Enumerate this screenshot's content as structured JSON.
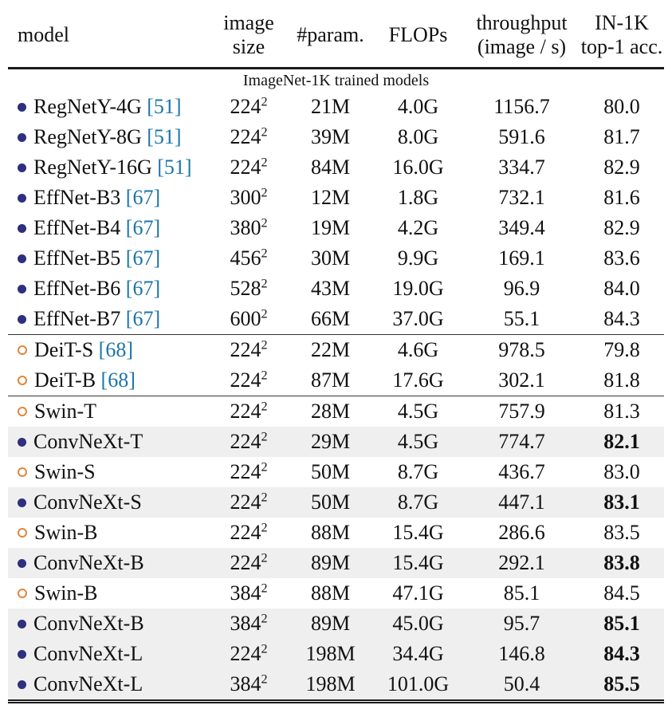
{
  "header": {
    "model": "model",
    "size_line1": "image",
    "size_line2": "size",
    "param": "#param.",
    "flops": "FLOPs",
    "tp_line1": "throughput",
    "tp_line2": "(image / s)",
    "acc_line1": "IN-1K",
    "acc_line2": "top-1 acc."
  },
  "section_label": "ImageNet-1K trained models",
  "colors": {
    "filled_marker": "#2f2f7f",
    "open_marker": "#e0873c",
    "citation": "#1b75a8",
    "highlight_row": "#efefef"
  },
  "rows": [
    {
      "marker": "filled",
      "model": "RegNetY-4G",
      "cite": "[51]",
      "size": "224",
      "exp": "2",
      "params": "21M",
      "flops": "4.0G",
      "throughput": "1156.7",
      "acc": "80.0",
      "bold_acc": false,
      "highlight": false,
      "group_start": false
    },
    {
      "marker": "filled",
      "model": "RegNetY-8G",
      "cite": "[51]",
      "size": "224",
      "exp": "2",
      "params": "39M",
      "flops": "8.0G",
      "throughput": "591.6",
      "acc": "81.7",
      "bold_acc": false,
      "highlight": false,
      "group_start": false
    },
    {
      "marker": "filled",
      "model": "RegNetY-16G",
      "cite": "[51]",
      "size": "224",
      "exp": "2",
      "params": "84M",
      "flops": "16.0G",
      "throughput": "334.7",
      "acc": "82.9",
      "bold_acc": false,
      "highlight": false,
      "group_start": false
    },
    {
      "marker": "filled",
      "model": "EffNet-B3",
      "cite": "[67]",
      "size": "300",
      "exp": "2",
      "params": "12M",
      "flops": "1.8G",
      "throughput": "732.1",
      "acc": "81.6",
      "bold_acc": false,
      "highlight": false,
      "group_start": false
    },
    {
      "marker": "filled",
      "model": "EffNet-B4",
      "cite": "[67]",
      "size": "380",
      "exp": "2",
      "params": "19M",
      "flops": "4.2G",
      "throughput": "349.4",
      "acc": "82.9",
      "bold_acc": false,
      "highlight": false,
      "group_start": false
    },
    {
      "marker": "filled",
      "model": "EffNet-B5",
      "cite": "[67]",
      "size": "456",
      "exp": "2",
      "params": "30M",
      "flops": "9.9G",
      "throughput": "169.1",
      "acc": "83.6",
      "bold_acc": false,
      "highlight": false,
      "group_start": false
    },
    {
      "marker": "filled",
      "model": "EffNet-B6",
      "cite": "[67]",
      "size": "528",
      "exp": "2",
      "params": "43M",
      "flops": "19.0G",
      "throughput": "96.9",
      "acc": "84.0",
      "bold_acc": false,
      "highlight": false,
      "group_start": false
    },
    {
      "marker": "filled",
      "model": "EffNet-B7",
      "cite": "[67]",
      "size": "600",
      "exp": "2",
      "params": "66M",
      "flops": "37.0G",
      "throughput": "55.1",
      "acc": "84.3",
      "bold_acc": false,
      "highlight": false,
      "group_start": false
    },
    {
      "marker": "open",
      "model": "DeiT-S",
      "cite": "[68]",
      "size": "224",
      "exp": "2",
      "params": "22M",
      "flops": "4.6G",
      "throughput": "978.5",
      "acc": "79.8",
      "bold_acc": false,
      "highlight": false,
      "group_start": true
    },
    {
      "marker": "open",
      "model": "DeiT-B",
      "cite": "[68]",
      "size": "224",
      "exp": "2",
      "params": "87M",
      "flops": "17.6G",
      "throughput": "302.1",
      "acc": "81.8",
      "bold_acc": false,
      "highlight": false,
      "group_start": false
    },
    {
      "marker": "open",
      "model": "Swin-T",
      "cite": "",
      "size": "224",
      "exp": "2",
      "params": "28M",
      "flops": "4.5G",
      "throughput": "757.9",
      "acc": "81.3",
      "bold_acc": false,
      "highlight": false,
      "group_start": true
    },
    {
      "marker": "filled",
      "model": "ConvNeXt-T",
      "cite": "",
      "size": "224",
      "exp": "2",
      "params": "29M",
      "flops": "4.5G",
      "throughput": "774.7",
      "acc": "82.1",
      "bold_acc": true,
      "highlight": true,
      "group_start": false
    },
    {
      "marker": "open",
      "model": "Swin-S",
      "cite": "",
      "size": "224",
      "exp": "2",
      "params": "50M",
      "flops": "8.7G",
      "throughput": "436.7",
      "acc": "83.0",
      "bold_acc": false,
      "highlight": false,
      "group_start": false
    },
    {
      "marker": "filled",
      "model": "ConvNeXt-S",
      "cite": "",
      "size": "224",
      "exp": "2",
      "params": "50M",
      "flops": "8.7G",
      "throughput": "447.1",
      "acc": "83.1",
      "bold_acc": true,
      "highlight": true,
      "group_start": false
    },
    {
      "marker": "open",
      "model": "Swin-B",
      "cite": "",
      "size": "224",
      "exp": "2",
      "params": "88M",
      "flops": "15.4G",
      "throughput": "286.6",
      "acc": "83.5",
      "bold_acc": false,
      "highlight": false,
      "group_start": false
    },
    {
      "marker": "filled",
      "model": "ConvNeXt-B",
      "cite": "",
      "size": "224",
      "exp": "2",
      "params": "89M",
      "flops": "15.4G",
      "throughput": "292.1",
      "acc": "83.8",
      "bold_acc": true,
      "highlight": true,
      "group_start": false
    },
    {
      "marker": "open",
      "model": "Swin-B",
      "cite": "",
      "size": "384",
      "exp": "2",
      "params": "88M",
      "flops": "47.1G",
      "throughput": "85.1",
      "acc": "84.5",
      "bold_acc": false,
      "highlight": false,
      "group_start": false
    },
    {
      "marker": "filled",
      "model": "ConvNeXt-B",
      "cite": "",
      "size": "384",
      "exp": "2",
      "params": "89M",
      "flops": "45.0G",
      "throughput": "95.7",
      "acc": "85.1",
      "bold_acc": true,
      "highlight": true,
      "group_start": false
    },
    {
      "marker": "filled",
      "model": "ConvNeXt-L",
      "cite": "",
      "size": "224",
      "exp": "2",
      "params": "198M",
      "flops": "34.4G",
      "throughput": "146.8",
      "acc": "84.3",
      "bold_acc": true,
      "highlight": true,
      "group_start": false
    },
    {
      "marker": "filled",
      "model": "ConvNeXt-L",
      "cite": "",
      "size": "384",
      "exp": "2",
      "params": "198M",
      "flops": "101.0G",
      "throughput": "50.4",
      "acc": "85.5",
      "bold_acc": true,
      "highlight": true,
      "group_start": false
    }
  ]
}
